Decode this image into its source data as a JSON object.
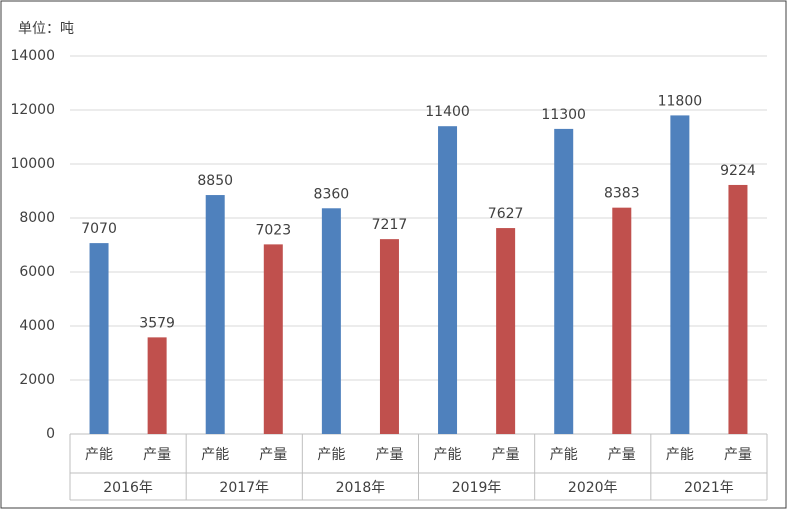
{
  "chart_data": {
    "type": "bar",
    "y_label": "单位：吨",
    "categories": [
      "2016年",
      "2017年",
      "2018年",
      "2019年",
      "2020年",
      "2021年"
    ],
    "series": [
      {
        "name": "产能",
        "color": "#4f81bd",
        "values": [
          7070,
          8850,
          8360,
          11400,
          11300,
          11800
        ]
      },
      {
        "name": "产量",
        "color": "#c0504d",
        "values": [
          3579,
          7023,
          7217,
          7627,
          8383,
          9224
        ]
      }
    ],
    "ylim": [
      0,
      14000
    ],
    "yticks": [
      0,
      2000,
      4000,
      6000,
      8000,
      10000,
      12000,
      14000
    ],
    "grid": true
  }
}
